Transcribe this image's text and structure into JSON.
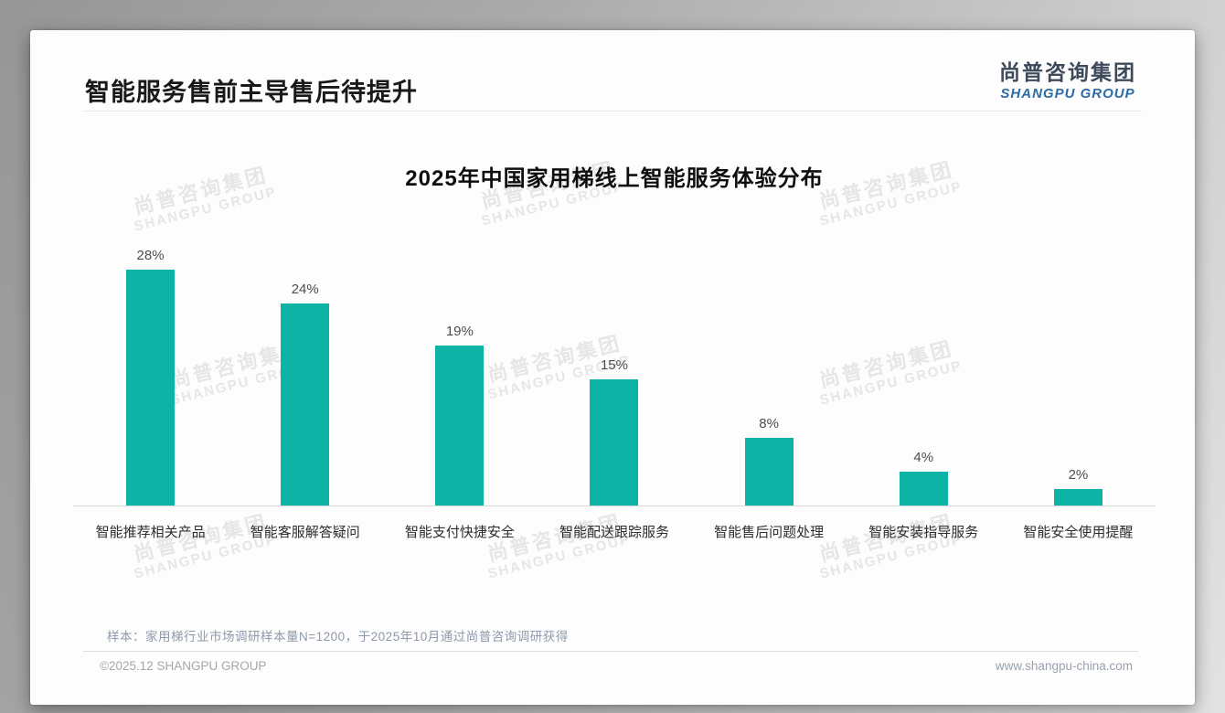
{
  "page": {
    "title": "智能服务售前主导售后待提升",
    "logo": {
      "cn": "尚普咨询集团",
      "en": "SHANGPU GROUP"
    },
    "watermark": {
      "line1": "尚普咨询集团",
      "line2": "SHANGPU GROUP"
    },
    "footnote": "样本：家用梯行业市场调研样本量N=1200，于2025年10月通过尚普咨询调研获得",
    "footer": {
      "left": "©2025.12 SHANGPU GROUP",
      "right": "www.shangpu-china.com"
    }
  },
  "colors": {
    "bar_teal": "#0db3a5",
    "logo_blue": "#2c6ba6",
    "logo_dark": "#3e4a5c"
  },
  "chart_data": {
    "type": "bar",
    "title": "2025年中国家用梯线上智能服务体验分布",
    "categories": [
      "智能推荐相关产品",
      "智能客服解答疑问",
      "智能支付快捷安全",
      "智能配送跟踪服务",
      "智能售后问题处理",
      "智能安装指导服务",
      "智能安全使用提醒"
    ],
    "values": [
      28,
      24,
      19,
      15,
      8,
      4,
      2
    ],
    "unit": "%",
    "bar_color": "#0db3a5",
    "xlabel": "",
    "ylabel": "",
    "ylim": [
      0,
      30
    ],
    "grid": false,
    "legend": "none",
    "value_labels": [
      "28%",
      "24%",
      "19%",
      "15%",
      "8%",
      "4%",
      "2%"
    ]
  }
}
